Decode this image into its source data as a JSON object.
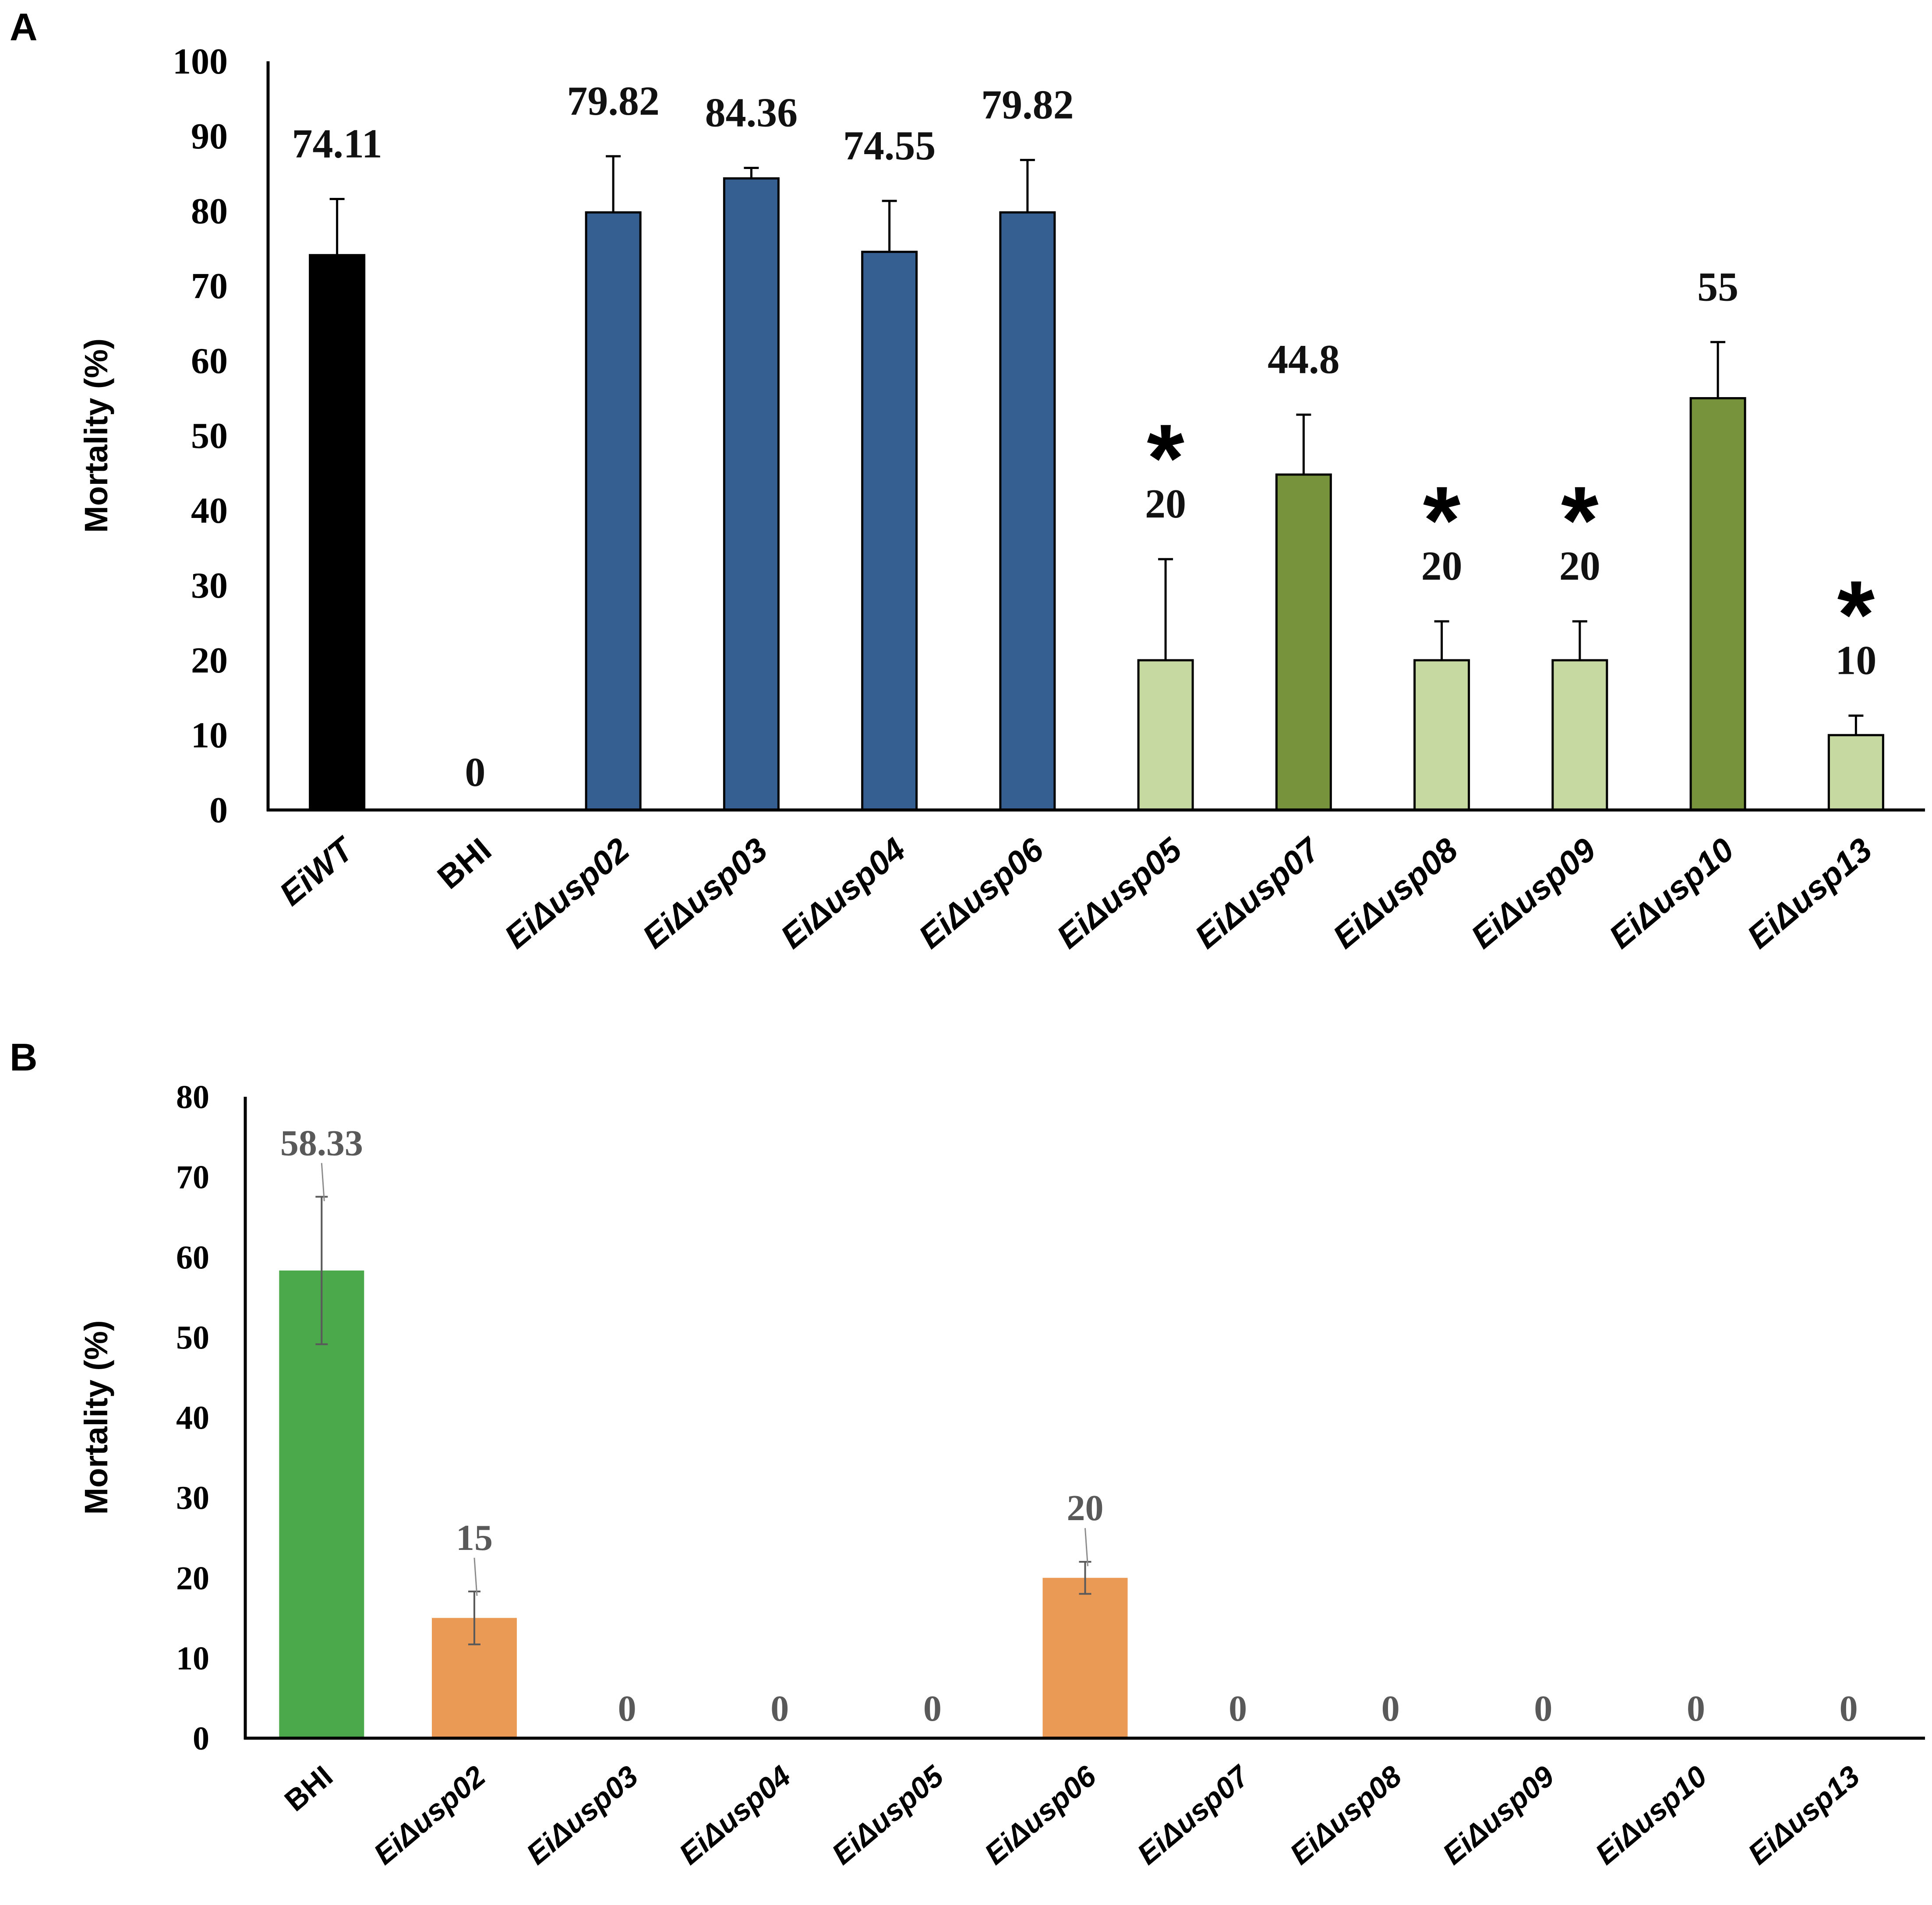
{
  "chart_data": [
    {
      "panel": "A",
      "type": "bar",
      "ylabel": "Mortality (%)",
      "ylim": [
        0,
        100
      ],
      "yticks": [
        0,
        10,
        20,
        30,
        40,
        50,
        60,
        70,
        80,
        90,
        100
      ],
      "categories": [
        "EiWT",
        "BHI",
        "EiΔusp02",
        "EiΔusp03",
        "EiΔusp04",
        "EiΔusp06",
        "EiΔusp05",
        "EiΔusp07",
        "EiΔusp08",
        "EiΔusp09",
        "EiΔusp10",
        "EiΔusp13"
      ],
      "values": [
        74.11,
        0,
        79.82,
        84.36,
        74.55,
        79.82,
        20,
        44.8,
        20,
        20,
        55,
        10
      ],
      "error": [
        7.5,
        0,
        7.5,
        1.4,
        6.8,
        7.0,
        13.5,
        8.0,
        5.2,
        5.2,
        7.5,
        2.6
      ],
      "value_labels": [
        "74.11",
        "0",
        "79.82",
        "84.36",
        "74.55",
        "79.82",
        "20",
        "44.8",
        "20",
        "20",
        "55",
        "10"
      ],
      "significant": [
        false,
        false,
        false,
        false,
        false,
        false,
        true,
        false,
        true,
        true,
        false,
        true
      ],
      "significance_marker": "*",
      "colors": [
        "#000000",
        "#000000",
        "#355F91",
        "#355F91",
        "#355F91",
        "#355F91",
        "#C6D9A0",
        "#77933C",
        "#C6D9A0",
        "#C6D9A0",
        "#77933C",
        "#C6D9A0"
      ],
      "grid": false
    },
    {
      "panel": "B",
      "type": "bar",
      "ylabel": "Mortality (%)",
      "ylim": [
        0,
        80
      ],
      "yticks": [
        0,
        10,
        20,
        30,
        40,
        50,
        60,
        70,
        80
      ],
      "categories": [
        "BHI",
        "EiΔusp02",
        "EiΔusp03",
        "EiΔusp04",
        "EiΔusp05",
        "EiΔusp06",
        "EiΔusp07",
        "EiΔusp08",
        "EiΔusp09",
        "EiΔusp10",
        "EiΔusp13"
      ],
      "values": [
        58.33,
        15,
        0,
        0,
        0,
        20,
        0,
        0,
        0,
        0,
        0
      ],
      "error": [
        9.2,
        3.3,
        0,
        0,
        0,
        2.0,
        0,
        0,
        0,
        0,
        0
      ],
      "value_labels": [
        "58.33",
        "15",
        "0",
        "0",
        "0",
        "20",
        "0",
        "0",
        "0",
        "0",
        "0"
      ],
      "colors": [
        "#4BA84B",
        "#EB9A55",
        "#EB9A55",
        "#EB9A55",
        "#EB9A55",
        "#EB9A55",
        "#EB9A55",
        "#EB9A55",
        "#EB9A55",
        "#EB9A55",
        "#EB9A55"
      ],
      "grid": false
    }
  ]
}
